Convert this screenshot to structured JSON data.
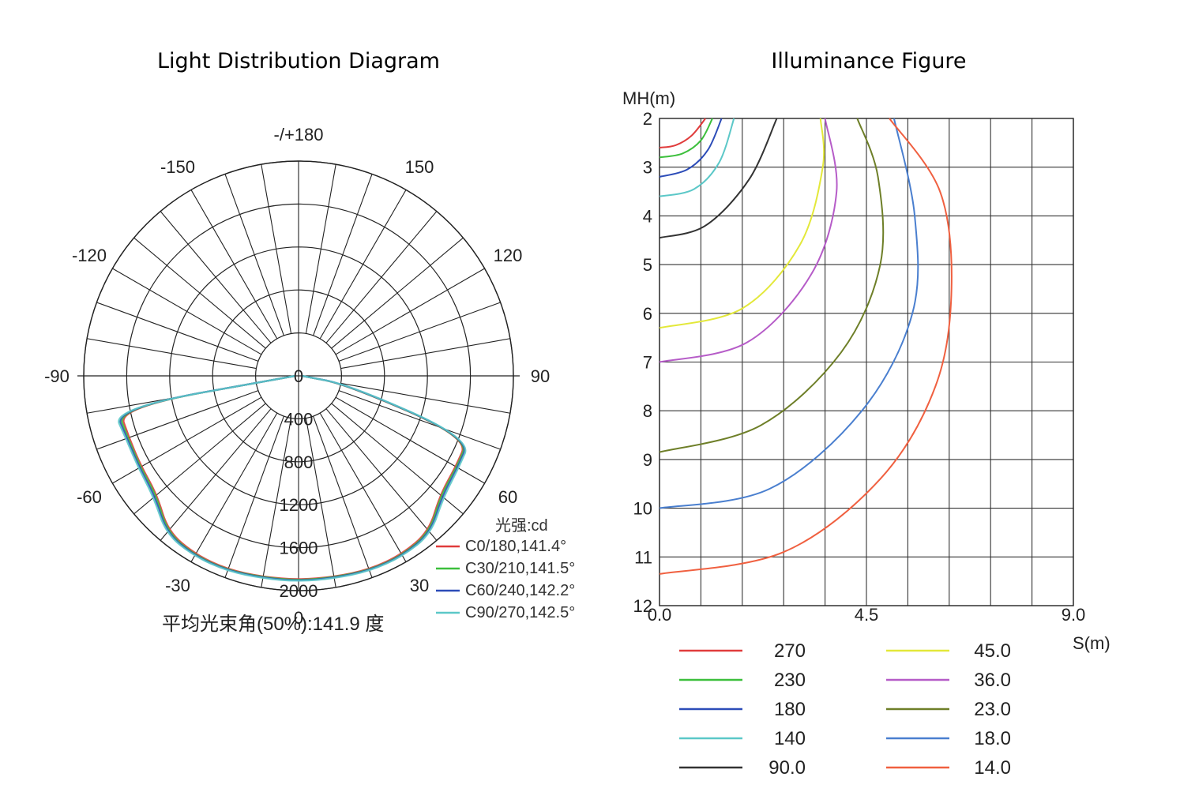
{
  "chart_data": [
    {
      "type": "polar",
      "title": "Light Distribution Diagram",
      "angle_labels": [
        "-/+180",
        "150",
        "120",
        "90",
        "60",
        "30",
        "0",
        "-30",
        "-60",
        "-90",
        "-120",
        "-150"
      ],
      "radial_ticks": [
        "0",
        "400",
        "800",
        "1200",
        "1600",
        "2000"
      ],
      "radial_max": 2000,
      "unit_label": "光强:cd",
      "beam_note": "平均光束角(50%):141.9   度",
      "series": [
        {
          "name": "C0/180,141.4°",
          "color": "#e03c3c",
          "angles": [
            -90,
            -80,
            -70,
            -60,
            -50,
            -40,
            -30,
            -20,
            -10,
            0,
            10,
            20,
            30,
            40,
            50,
            60,
            70,
            80,
            90
          ],
          "values": [
            30,
            1700,
            1680,
            1690,
            1720,
            1890,
            1920,
            1920,
            1900,
            1900,
            1900,
            1920,
            1920,
            1890,
            1720,
            1690,
            1680,
            450,
            30
          ]
        },
        {
          "name": "C30/210,141.5°",
          "color": "#3cbf3c",
          "angles": [
            -90,
            -80,
            -70,
            -60,
            -50,
            -40,
            -30,
            -20,
            -10,
            0,
            10,
            20,
            30,
            40,
            50,
            60,
            70,
            80,
            90
          ],
          "values": [
            30,
            1720,
            1690,
            1700,
            1730,
            1900,
            1930,
            1925,
            1905,
            1905,
            1905,
            1925,
            1930,
            1900,
            1730,
            1700,
            1690,
            460,
            30
          ]
        },
        {
          "name": "C60/240,142.2°",
          "color": "#2c4cb8",
          "angles": [
            -90,
            -80,
            -70,
            -60,
            -50,
            -40,
            -30,
            -20,
            -10,
            0,
            10,
            20,
            30,
            40,
            50,
            60,
            70,
            80,
            90
          ],
          "values": [
            30,
            1740,
            1700,
            1710,
            1745,
            1910,
            1935,
            1930,
            1910,
            1910,
            1910,
            1930,
            1935,
            1910,
            1745,
            1710,
            1700,
            470,
            30
          ]
        },
        {
          "name": "C90/270,142.5°",
          "color": "#5cc8c8",
          "angles": [
            -90,
            -80,
            -70,
            -60,
            -50,
            -40,
            -30,
            -20,
            -10,
            0,
            10,
            20,
            30,
            40,
            50,
            60,
            70,
            80,
            90
          ],
          "values": [
            30,
            1760,
            1710,
            1720,
            1760,
            1920,
            1940,
            1935,
            1915,
            1915,
            1915,
            1935,
            1940,
            1920,
            1760,
            1720,
            1710,
            480,
            30
          ]
        }
      ]
    },
    {
      "type": "line",
      "title": "Illuminance Figure",
      "xlabel": "S(m)",
      "ylabel": "MH(m)",
      "xlim": [
        0,
        9
      ],
      "ylim": [
        2,
        12
      ],
      "x_tick_labels": [
        "0.0",
        "4.5",
        "9.0"
      ],
      "y_tick_labels": [
        "2",
        "3",
        "4",
        "5",
        "6",
        "7",
        "8",
        "9",
        "10",
        "11",
        "12"
      ],
      "series": [
        {
          "name": "270",
          "color": "#e03c3c",
          "points": [
            [
              0,
              2.6
            ],
            [
              0.35,
              2.55
            ],
            [
              0.7,
              2.35
            ],
            [
              1.0,
              2.0
            ]
          ]
        },
        {
          "name": "230",
          "color": "#3cbf3c",
          "points": [
            [
              0,
              2.8
            ],
            [
              0.5,
              2.72
            ],
            [
              0.9,
              2.45
            ],
            [
              1.15,
              2.0
            ]
          ]
        },
        {
          "name": "180",
          "color": "#2c4cb8",
          "points": [
            [
              0,
              3.2
            ],
            [
              0.6,
              3.05
            ],
            [
              1.05,
              2.65
            ],
            [
              1.35,
              2.0
            ]
          ]
        },
        {
          "name": "140",
          "color": "#5cc8c8",
          "points": [
            [
              0,
              3.6
            ],
            [
              0.75,
              3.45
            ],
            [
              1.3,
              2.9
            ],
            [
              1.62,
              2.0
            ]
          ]
        },
        {
          "name": "90.0",
          "color": "#333333",
          "points": [
            [
              0,
              4.45
            ],
            [
              1.0,
              4.2
            ],
            [
              1.95,
              3.25
            ],
            [
              2.55,
              2.0
            ]
          ]
        },
        {
          "name": "45.0",
          "color": "#e3e83a",
          "points": [
            [
              0,
              6.3
            ],
            [
              1.8,
              5.9
            ],
            [
              3.05,
              4.6
            ],
            [
              3.55,
              3.0
            ],
            [
              3.5,
              2.0
            ]
          ]
        },
        {
          "name": "36.0",
          "color": "#b65cc8",
          "points": [
            [
              0,
              7.0
            ],
            [
              1.9,
              6.6
            ],
            [
              3.3,
              5.2
            ],
            [
              3.85,
              3.5
            ],
            [
              3.6,
              2.0
            ]
          ]
        },
        {
          "name": "23.0",
          "color": "#6e7f28",
          "points": [
            [
              0,
              8.85
            ],
            [
              2.2,
              8.3
            ],
            [
              3.95,
              6.8
            ],
            [
              4.8,
              5.0
            ],
            [
              4.75,
              3.2
            ],
            [
              4.3,
              2.0
            ]
          ]
        },
        {
          "name": "18.0",
          "color": "#4a7fcf",
          "points": [
            [
              0,
              10.0
            ],
            [
              2.4,
              9.6
            ],
            [
              4.4,
              8.0
            ],
            [
              5.5,
              6.0
            ],
            [
              5.55,
              4.0
            ],
            [
              5.1,
              2.0
            ]
          ]
        },
        {
          "name": "14.0",
          "color": "#f06040",
          "points": [
            [
              0,
              11.35
            ],
            [
              2.7,
              10.9
            ],
            [
              4.8,
              9.4
            ],
            [
              6.0,
              7.5
            ],
            [
              6.35,
              5.5
            ],
            [
              6.1,
              3.5
            ],
            [
              5.0,
              2.0
            ]
          ]
        }
      ]
    }
  ]
}
